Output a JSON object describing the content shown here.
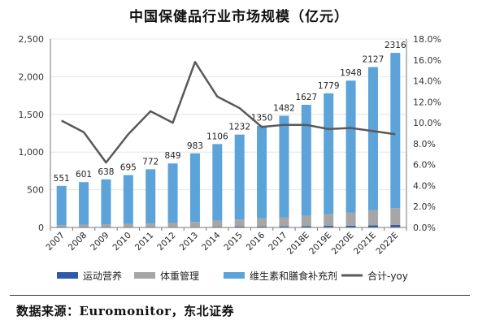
{
  "title": "中国保健品行业市场规模（亿元）",
  "source_note": "数据来源：Euromonitor，东北证券",
  "colors": {
    "sports_nutrition": "#2e5aa8",
    "weight_management": "#a6a6a6",
    "vitamins_supplements": "#5ba3d9",
    "yoy_line": "#595959",
    "axis": "#777777",
    "grid": "#e4e4e4"
  },
  "chart_data": {
    "type": "bar",
    "stacked": true,
    "categories": [
      "2007",
      "2008",
      "2009",
      "2010",
      "2011",
      "2012",
      "2013",
      "2014",
      "2015",
      "2016",
      "2017",
      "2018E",
      "2019E",
      "2020E",
      "2021E",
      "2022E"
    ],
    "totals": [
      551,
      601,
      638,
      695,
      772,
      849,
      983,
      1106,
      1232,
      1350,
      1482,
      1627,
      1779,
      1948,
      2127,
      2316
    ],
    "series": [
      {
        "name": "运动营养",
        "axis": "left",
        "values": [
          4,
          4,
          5,
          5,
          6,
          7,
          8,
          9,
          11,
          13,
          15,
          18,
          21,
          24,
          28,
          32
        ]
      },
      {
        "name": "体重管理",
        "axis": "left",
        "values": [
          26,
          30,
          34,
          40,
          46,
          53,
          65,
          80,
          95,
          110,
          120,
          135,
          155,
          175,
          200,
          225
        ]
      },
      {
        "name": "维生素和膳食补充剂",
        "axis": "left",
        "values": [
          521,
          567,
          599,
          650,
          720,
          789,
          910,
          1017,
          1126,
          1227,
          1347,
          1474,
          1603,
          1749,
          1899,
          2059
        ]
      },
      {
        "name": "合计-yoy",
        "axis": "right",
        "type": "line",
        "values": [
          10.2,
          9.1,
          6.2,
          8.9,
          11.1,
          10.0,
          15.8,
          12.5,
          11.4,
          9.6,
          9.8,
          9.8,
          9.4,
          9.5,
          9.2,
          8.9
        ]
      }
    ],
    "y_left": {
      "min": 0,
      "max": 2500,
      "ticks": [
        0,
        500,
        1000,
        1500,
        2000,
        2500
      ],
      "tick_labels": [
        "0",
        "500",
        "1,000",
        "1,500",
        "2,000",
        "2,500"
      ]
    },
    "y_right": {
      "min": 0,
      "max": 18,
      "ticks": [
        0,
        2,
        4,
        6,
        8,
        10,
        12,
        14,
        16,
        18
      ],
      "tick_labels": [
        "0.0%",
        "2.0%",
        "4.0%",
        "6.0%",
        "8.0%",
        "10.0%",
        "12.0%",
        "14.0%",
        "16.0%",
        "18.0%"
      ]
    },
    "grid": true,
    "legend_position": "bottom"
  }
}
